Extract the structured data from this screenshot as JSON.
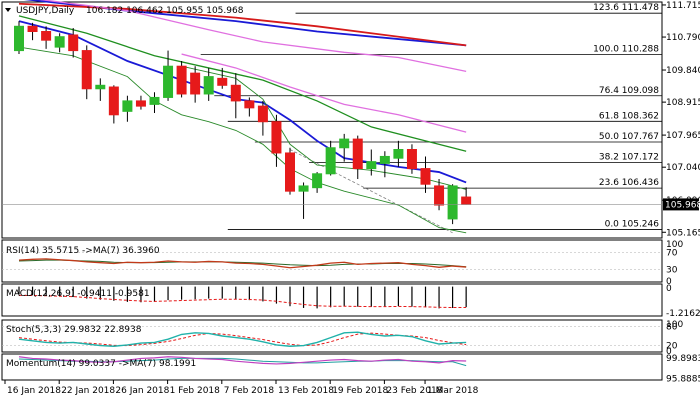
{
  "colors": {
    "background": "#ffffff",
    "bull_candle": "#2db82d",
    "bear_candle": "#e61a1a",
    "ma_blue": "#1a1ad6",
    "ma_red": "#d61a1a",
    "ma_green": "#1f8f1f",
    "ma_magenta": "#e070e0",
    "bb_line": "#2a8a2a",
    "fib_line": "#000000",
    "current_price_bg": "#000000",
    "current_price_text": "#ffffff",
    "rsi_line": "#c23a1a",
    "rsi_ma": "#2a6a2a",
    "macd_hist": "#000000",
    "macd_signal": "#e61a1a",
    "stoch_main": "#20b2aa",
    "stoch_signal": "#e61a1a",
    "momentum_main": "#c040c0",
    "momentum_ma": "#20a0a0",
    "grid": "#c0c0c0"
  },
  "chart_data": {
    "type": "candlestick",
    "header": {
      "symbol": "USDJPY,Daily",
      "ohlc": "106.182 106.462 105.955 105.968"
    },
    "current_price": "105.968",
    "y_ticks": [
      "111.715",
      "110.790",
      "109.840",
      "108.915",
      "107.965",
      "107.040",
      "106.090",
      "105.165"
    ],
    "x_ticks": [
      "16 Jan 2018",
      "22 Jan 2018",
      "26 Jan 2018",
      "1 Feb 2018",
      "7 Feb 2018",
      "13 Feb 2018",
      "19 Feb 2018",
      "23 Feb 2018",
      "1 Mar 2018"
    ],
    "ylim": [
      105.0,
      111.8
    ],
    "candles": [
      {
        "o": 110.4,
        "h": 111.25,
        "l": 110.3,
        "c": 111.1
      },
      {
        "o": 111.1,
        "h": 111.2,
        "l": 110.7,
        "c": 110.95
      },
      {
        "o": 110.95,
        "h": 111.1,
        "l": 110.45,
        "c": 110.7
      },
      {
        "o": 110.5,
        "h": 110.9,
        "l": 110.35,
        "c": 110.8
      },
      {
        "o": 110.85,
        "h": 111.05,
        "l": 110.2,
        "c": 110.4
      },
      {
        "o": 110.4,
        "h": 110.55,
        "l": 109.0,
        "c": 109.3
      },
      {
        "o": 109.3,
        "h": 109.6,
        "l": 108.95,
        "c": 109.4
      },
      {
        "o": 109.35,
        "h": 109.4,
        "l": 108.3,
        "c": 108.55
      },
      {
        "o": 108.65,
        "h": 109.1,
        "l": 108.35,
        "c": 108.95
      },
      {
        "o": 108.95,
        "h": 109.1,
        "l": 108.7,
        "c": 108.8
      },
      {
        "o": 108.85,
        "h": 109.2,
        "l": 108.6,
        "c": 109.05
      },
      {
        "o": 109.05,
        "h": 110.4,
        "l": 108.95,
        "c": 109.95
      },
      {
        "o": 109.95,
        "h": 110.1,
        "l": 109.05,
        "c": 109.15
      },
      {
        "o": 109.75,
        "h": 109.95,
        "l": 108.9,
        "c": 109.15
      },
      {
        "o": 109.15,
        "h": 109.9,
        "l": 108.95,
        "c": 109.65
      },
      {
        "o": 109.6,
        "h": 109.9,
        "l": 109.3,
        "c": 109.4
      },
      {
        "o": 109.4,
        "h": 109.75,
        "l": 108.45,
        "c": 108.95
      },
      {
        "o": 108.95,
        "h": 109.05,
        "l": 108.5,
        "c": 108.75
      },
      {
        "o": 108.8,
        "h": 108.95,
        "l": 107.95,
        "c": 108.35
      },
      {
        "o": 108.35,
        "h": 108.55,
        "l": 107.05,
        "c": 107.45
      },
      {
        "o": 107.45,
        "h": 107.6,
        "l": 106.25,
        "c": 106.35
      },
      {
        "o": 106.35,
        "h": 106.6,
        "l": 105.55,
        "c": 106.5
      },
      {
        "o": 106.45,
        "h": 106.9,
        "l": 106.3,
        "c": 106.85
      },
      {
        "o": 106.85,
        "h": 107.8,
        "l": 106.8,
        "c": 107.6
      },
      {
        "o": 107.6,
        "h": 108.0,
        "l": 107.2,
        "c": 107.85
      },
      {
        "o": 107.85,
        "h": 107.95,
        "l": 106.7,
        "c": 107.0
      },
      {
        "o": 107.0,
        "h": 107.55,
        "l": 106.8,
        "c": 107.2
      },
      {
        "o": 107.15,
        "h": 107.5,
        "l": 106.75,
        "c": 107.35
      },
      {
        "o": 107.3,
        "h": 107.8,
        "l": 107.05,
        "c": 107.55
      },
      {
        "o": 107.55,
        "h": 107.7,
        "l": 106.85,
        "c": 107.0
      },
      {
        "o": 107.0,
        "h": 107.35,
        "l": 106.3,
        "c": 106.55
      },
      {
        "o": 106.5,
        "h": 106.7,
        "l": 105.8,
        "c": 105.95
      },
      {
        "o": 105.55,
        "h": 106.55,
        "l": 105.4,
        "c": 106.5
      },
      {
        "o": 106.18,
        "h": 106.46,
        "l": 105.96,
        "c": 105.97
      }
    ],
    "moving_averages": [
      {
        "color_key": "ma_blue",
        "points": [
          [
            0,
            111.9
          ],
          [
            8,
            111.55
          ],
          [
            16,
            111.25
          ],
          [
            22,
            110.95
          ],
          [
            33,
            110.55
          ]
        ]
      },
      {
        "color_key": "ma_red",
        "points": [
          [
            0,
            111.75
          ],
          [
            8,
            111.6
          ],
          [
            16,
            111.35
          ],
          [
            22,
            111.1
          ],
          [
            33,
            110.55
          ]
        ]
      },
      {
        "color_key": "ma_magenta",
        "points": [
          [
            0,
            111.95
          ],
          [
            8,
            111.55
          ],
          [
            14,
            111.0
          ],
          [
            18,
            110.65
          ],
          [
            24,
            110.35
          ],
          [
            28,
            110.2
          ],
          [
            33,
            109.8
          ]
        ]
      },
      {
        "color_key": "ma_magenta",
        "points": [
          [
            12,
            110.3
          ],
          [
            16,
            109.9
          ],
          [
            20,
            109.35
          ],
          [
            24,
            108.85
          ],
          [
            28,
            108.55
          ],
          [
            33,
            108.05
          ]
        ]
      },
      {
        "color_key": "ma_green",
        "points": [
          [
            0,
            111.4
          ],
          [
            5,
            110.9
          ],
          [
            10,
            110.25
          ],
          [
            14,
            109.9
          ],
          [
            18,
            109.55
          ],
          [
            22,
            108.95
          ],
          [
            26,
            108.2
          ],
          [
            30,
            107.8
          ],
          [
            33,
            107.5
          ]
        ]
      },
      {
        "color_key": "ma_blue",
        "points": [
          [
            0,
            111.25
          ],
          [
            4,
            110.85
          ],
          [
            8,
            110.1
          ],
          [
            12,
            109.55
          ],
          [
            16,
            109.0
          ],
          [
            18,
            108.9
          ],
          [
            20,
            108.4
          ],
          [
            22,
            107.8
          ],
          [
            24,
            107.3
          ],
          [
            28,
            107.05
          ],
          [
            31,
            106.9
          ],
          [
            33,
            106.6
          ]
        ]
      },
      {
        "color_key": "bb_line",
        "points": [
          [
            0,
            110.5
          ],
          [
            4,
            110.25
          ],
          [
            8,
            109.65
          ],
          [
            10,
            108.95
          ],
          [
            12,
            108.55
          ],
          [
            14,
            108.35
          ],
          [
            16,
            108.1
          ],
          [
            18,
            107.7
          ],
          [
            20,
            107.0
          ],
          [
            22,
            106.6
          ],
          [
            24,
            106.35
          ],
          [
            28,
            105.95
          ],
          [
            31,
            105.3
          ],
          [
            33,
            105.15
          ]
        ]
      },
      {
        "color_key": "bb_line",
        "points": [
          [
            12,
            109.95
          ],
          [
            16,
            109.6
          ],
          [
            18,
            109.0
          ],
          [
            20,
            107.7
          ],
          [
            22,
            107.1
          ],
          [
            26,
            106.95
          ],
          [
            30,
            106.7
          ],
          [
            33,
            106.4
          ]
        ]
      }
    ],
    "fib_levels": [
      {
        "label": "123.6 111.478",
        "value": 111.478,
        "start": 21
      },
      {
        "label": "100.0 110.288",
        "value": 110.288,
        "start": 14
      },
      {
        "label": "76.4 109.098",
        "value": 109.098,
        "start": 15
      },
      {
        "label": "61.8 108.362",
        "value": 108.362,
        "start": 16
      },
      {
        "label": "50.0 107.767",
        "value": 107.767,
        "start": 18
      },
      {
        "label": "38.2 107.172",
        "value": 107.172,
        "start": 22
      },
      {
        "label": "23.6 106.436",
        "value": 106.436,
        "start": 26
      },
      {
        "label": "0.0 105.246",
        "value": 105.246,
        "start": 16
      }
    ],
    "rsi": {
      "label": "RSI(14) 35.5715  ->MA(7) 36.3960",
      "scale_labels": [
        "100",
        "70",
        "30",
        "0"
      ],
      "values": [
        52,
        54,
        55,
        53,
        51,
        48,
        46,
        44,
        47,
        46,
        47,
        50,
        48,
        47,
        49,
        48,
        45,
        44,
        42,
        38,
        34,
        37,
        40,
        45,
        47,
        42,
        44,
        45,
        46,
        42,
        39,
        35,
        38,
        35.57
      ],
      "ma": [
        50,
        51,
        52,
        52,
        51,
        50,
        49,
        47,
        46,
        46,
        46,
        47,
        48,
        48,
        48,
        48,
        47,
        46,
        45,
        43,
        41,
        40,
        39,
        40,
        42,
        43,
        43,
        44,
        44,
        44,
        43,
        41,
        39,
        36.4
      ]
    },
    "macd": {
      "label": "MACD(12,26,9) -0.9411 -0.9581",
      "scale_labels": [
        "0",
        "-1.2162"
      ],
      "hist": [
        -0.35,
        -0.4,
        -0.42,
        -0.45,
        -0.48,
        -0.55,
        -0.6,
        -0.65,
        -0.7,
        -0.72,
        -0.7,
        -0.62,
        -0.6,
        -0.58,
        -0.55,
        -0.55,
        -0.58,
        -0.62,
        -0.68,
        -0.78,
        -0.9,
        -0.98,
        -1.0,
        -0.95,
        -0.9,
        -0.92,
        -0.93,
        -0.92,
        -0.9,
        -0.92,
        -0.95,
        -1.0,
        -0.98,
        -0.94
      ],
      "signal": [
        -0.4,
        -0.41,
        -0.42,
        -0.44,
        -0.46,
        -0.5,
        -0.55,
        -0.59,
        -0.63,
        -0.66,
        -0.68,
        -0.66,
        -0.64,
        -0.62,
        -0.6,
        -0.58,
        -0.58,
        -0.59,
        -0.62,
        -0.67,
        -0.75,
        -0.82,
        -0.88,
        -0.9,
        -0.9,
        -0.91,
        -0.92,
        -0.92,
        -0.91,
        -0.92,
        -0.93,
        -0.95,
        -0.96,
        -0.96
      ]
    },
    "stoch": {
      "label": "Stoch(5,3,3) 29.9832 22.8938",
      "scale_labels": [
        "100",
        "80",
        "20",
        "0"
      ],
      "main": [
        40,
        35,
        30,
        28,
        30,
        25,
        20,
        18,
        22,
        28,
        30,
        40,
        55,
        60,
        58,
        50,
        45,
        40,
        32,
        22,
        18,
        20,
        30,
        45,
        60,
        62,
        55,
        50,
        52,
        48,
        35,
        25,
        28,
        30
      ],
      "signal": [
        45,
        40,
        35,
        31,
        29,
        28,
        25,
        21,
        20,
        23,
        27,
        33,
        42,
        52,
        58,
        56,
        51,
        45,
        39,
        31,
        24,
        20,
        22,
        32,
        45,
        56,
        59,
        56,
        52,
        50,
        45,
        36,
        29,
        23
      ]
    },
    "momentum": {
      "label": "Momentum(14) 99.0337  ->MA(7) 98.1991",
      "scale_labels": [
        "99.8983",
        "95.8885"
      ],
      "main": [
        99.8,
        99.5,
        99.4,
        99.2,
        99.1,
        98.9,
        98.8,
        98.9,
        99.2,
        99.5,
        99.6,
        99.8,
        99.7,
        99.5,
        99.4,
        99.3,
        99.0,
        98.8,
        98.6,
        98.5,
        98.6,
        98.8,
        99.0,
        99.2,
        99.3,
        99.1,
        99.0,
        99.2,
        99.3,
        99.0,
        98.9,
        98.7,
        99.1,
        99.03
      ],
      "ma": [
        99.4,
        99.3,
        99.2,
        99.1,
        99.0,
        99.0,
        98.9,
        98.9,
        99.0,
        99.1,
        99.2,
        99.4,
        99.5,
        99.5,
        99.5,
        99.5,
        99.4,
        99.2,
        99.0,
        98.9,
        98.8,
        98.7,
        98.7,
        98.8,
        98.9,
        99.0,
        99.0,
        99.1,
        99.1,
        99.1,
        99.0,
        98.9,
        98.9,
        98.2
      ]
    }
  }
}
